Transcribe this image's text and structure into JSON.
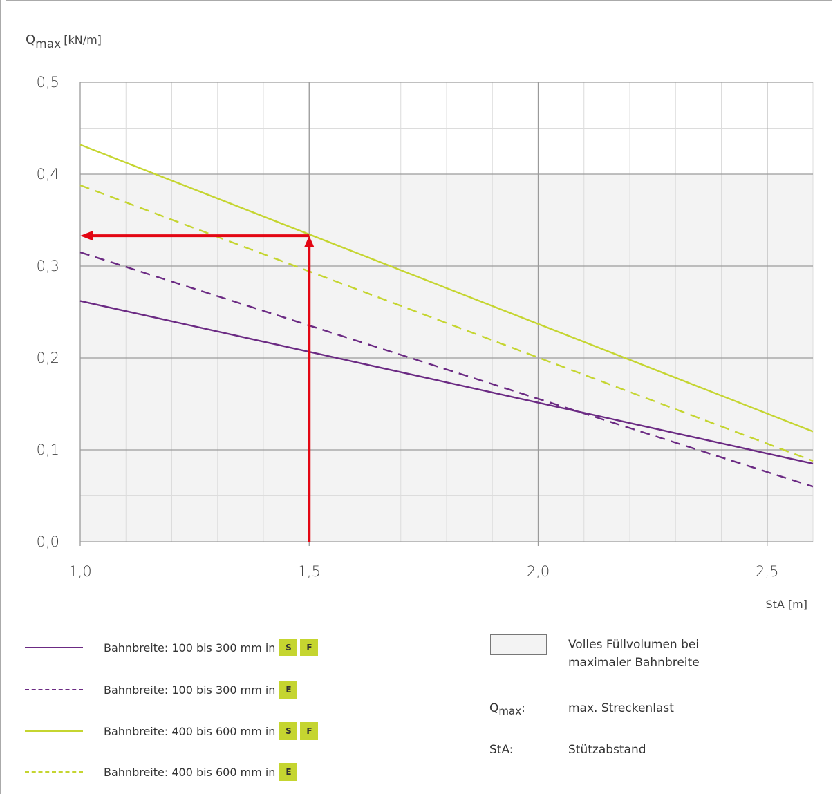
{
  "chart_data": {
    "type": "line",
    "ylabel_main": "Q",
    "ylabel_sub": "max",
    "ylabel_unit": "[kN/m]",
    "xlabel": "StA [m]",
    "xlim": [
      1.0,
      2.6
    ],
    "ylim": [
      0.0,
      0.5
    ],
    "x_ticks": [
      "1,0",
      "1,5",
      "2,0",
      "2,5"
    ],
    "x_tick_values": [
      1.0,
      1.5,
      2.0,
      2.5
    ],
    "y_ticks": [
      "0,0",
      "0,1",
      "0,2",
      "0,3",
      "0,4",
      "0,5"
    ],
    "y_tick_values": [
      0.0,
      0.1,
      0.2,
      0.3,
      0.4,
      0.5
    ],
    "minor_x_step": 0.1,
    "minor_y_step": 0.05,
    "grid": true,
    "shaded_region": {
      "ymax": 0.4,
      "color": "#f3f3f3"
    },
    "series": [
      {
        "name": "Bahnbreite: 100 bis 300 mm in",
        "badges": [
          "S",
          "F"
        ],
        "color": "#6b2a83",
        "dash": false,
        "x": [
          1.0,
          2.6
        ],
        "y": [
          0.262,
          0.085
        ]
      },
      {
        "name": "Bahnbreite: 100 bis 300 mm in",
        "badges": [
          "E"
        ],
        "color": "#6b2a83",
        "dash": true,
        "x": [
          1.0,
          2.6
        ],
        "y": [
          0.315,
          0.06
        ]
      },
      {
        "name": "Bahnbreite: 400 bis 600 mm in",
        "badges": [
          "S",
          "F"
        ],
        "color": "#c5d530",
        "dash": false,
        "x": [
          1.0,
          2.6
        ],
        "y": [
          0.432,
          0.12
        ]
      },
      {
        "name": "Bahnbreite: 400 bis 600 mm in",
        "badges": [
          "E"
        ],
        "color": "#c5d530",
        "dash": true,
        "x": [
          1.0,
          2.6
        ],
        "y": [
          0.388,
          0.088
        ]
      }
    ],
    "annotation": {
      "color": "#e30613",
      "x": 1.5,
      "y": 0.333
    }
  },
  "legend_right": {
    "swatch_text_1": "Volles Füllvolumen bei",
    "swatch_text_2": "maximaler Bahnbreite",
    "qmax_key_main": "Q",
    "qmax_key_sub": "max",
    "qmax_key_colon": ":",
    "qmax_value": "max. Streckenlast",
    "sta_key": "StA:",
    "sta_value": "Stützabstand"
  },
  "badge_color": "#c5d530"
}
